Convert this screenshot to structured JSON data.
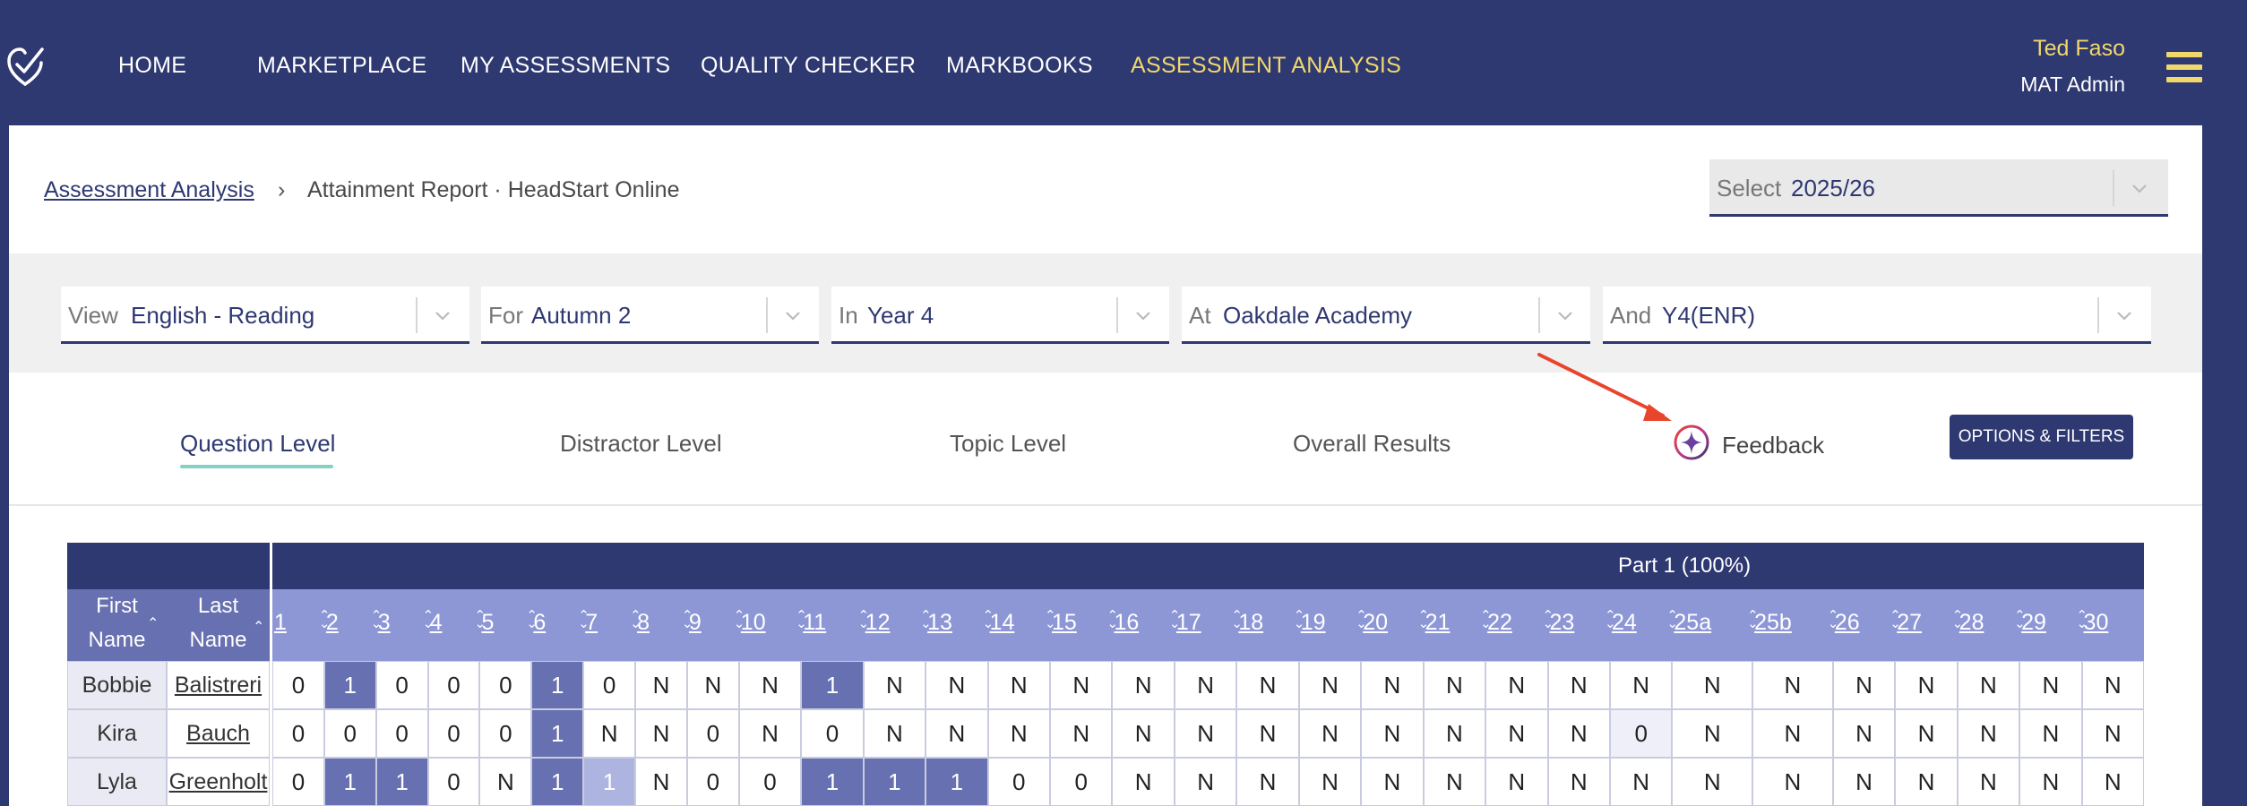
{
  "nav": {
    "items": [
      {
        "label": "HOME",
        "active": false
      },
      {
        "label": "MARKETPLACE",
        "active": false
      },
      {
        "label": "MY ASSESSMENTS",
        "active": false
      },
      {
        "label": "QUALITY CHECKER",
        "active": false
      },
      {
        "label": "MARKBOOKS",
        "active": false
      },
      {
        "label": "ASSESSMENT ANALYSIS",
        "active": true
      }
    ],
    "user_name": "Ted Faso",
    "user_role": "MAT Admin"
  },
  "breadcrumb": {
    "link": "Assessment Analysis",
    "separator": "›",
    "current": "Attainment Report · HeadStart Online"
  },
  "year_select": {
    "prefix": "Select",
    "value": "2025/26"
  },
  "filters": [
    {
      "prefix": "View",
      "value": "English - Reading"
    },
    {
      "prefix": "For",
      "value": "Autumn 2"
    },
    {
      "prefix": "In",
      "value": "Year 4"
    },
    {
      "prefix": "At",
      "value": "Oakdale Academy"
    },
    {
      "prefix": "And",
      "value": "Y4(ENR)"
    }
  ],
  "tabs": [
    {
      "label": "Question Level",
      "active": true
    },
    {
      "label": "Distractor Level",
      "active": false
    },
    {
      "label": "Topic Level",
      "active": false
    },
    {
      "label": "Overall Results",
      "active": false
    }
  ],
  "feedback_label": "Feedback",
  "options_button": "OPTIONS & FILTERS",
  "table": {
    "part_title": "Part 1 (100%)",
    "first_name_header": "First Name",
    "first_name_header_l1": "First",
    "first_name_header_l2": "Name",
    "last_name_header_l1": "Last",
    "last_name_header_l2": "Name",
    "questions": [
      "1",
      "2",
      "3",
      "4",
      "5",
      "6",
      "7",
      "8",
      "9",
      "10",
      "11",
      "12",
      "13",
      "14",
      "15",
      "16",
      "17",
      "18",
      "19",
      "20",
      "21",
      "22",
      "23",
      "24",
      "25a",
      "25b",
      "26",
      "27",
      "28",
      "29",
      "30"
    ],
    "rows": [
      {
        "first": "Bobbie",
        "last": "Balistreri",
        "marks": [
          "0",
          "1",
          "0",
          "0",
          "0",
          "1",
          "0",
          "N",
          "N",
          "N",
          "1",
          "N",
          "N",
          "N",
          "N",
          "N",
          "N",
          "N",
          "N",
          "N",
          "N",
          "N",
          "N",
          "N",
          "N",
          "N",
          "N",
          "N",
          "N",
          "N",
          "N"
        ]
      },
      {
        "first": "Kira",
        "last": "Bauch",
        "marks": [
          "0",
          "0",
          "0",
          "0",
          "0",
          "1",
          "N",
          "N",
          "0",
          "N",
          "0",
          "N",
          "N",
          "N",
          "N",
          "N",
          "N",
          "N",
          "N",
          "N",
          "N",
          "N",
          "N",
          "0",
          "N",
          "N",
          "N",
          "N",
          "N",
          "N",
          "N"
        ]
      },
      {
        "first": "Lyla",
        "last": "Greenholt",
        "marks": [
          "0",
          "1",
          "1",
          "0",
          "N",
          "1",
          "1",
          "N",
          "0",
          "0",
          "1",
          "1",
          "1",
          "0",
          "0",
          "N",
          "N",
          "N",
          "N",
          "N",
          "N",
          "N",
          "N",
          "N",
          "N",
          "N",
          "N",
          "N",
          "N",
          "N",
          "N"
        ]
      }
    ]
  },
  "colors": {
    "nav_bg": "#2e3871",
    "accent_yellow": "#f1d86b",
    "correct_cell": "#6770b0",
    "header_strip": "#8d97d6",
    "tab_underline": "#85d1c6",
    "annotation_arrow": "#e8452c"
  },
  "icons": {
    "logo": "checkmark-heart-logo",
    "menu": "hamburger-icon",
    "feedback": "sparkle-icon",
    "dropdown": "chevron-down-icon"
  }
}
